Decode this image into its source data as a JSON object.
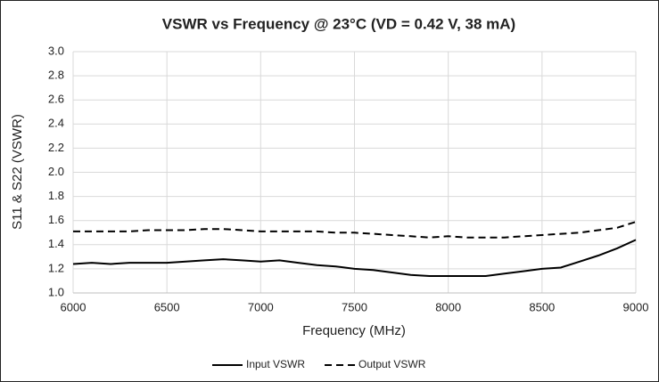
{
  "chart_data": {
    "type": "line",
    "title": "VSWR vs Frequency @ 23°C (VD = 0.42 V, 38 mA)",
    "x_label": "Frequency (MHz)",
    "y_label": "S11 & S22 (VSWR)",
    "x": [
      6000,
      6100,
      6200,
      6300,
      6400,
      6500,
      6600,
      6700,
      6800,
      6900,
      7000,
      7100,
      7200,
      7300,
      7400,
      7500,
      7600,
      7700,
      7800,
      7900,
      8000,
      8100,
      8200,
      8300,
      8400,
      8500,
      8600,
      8700,
      8800,
      8900,
      9000
    ],
    "series": [
      {
        "name": "Input VSWR",
        "color": "#000000",
        "dash": "solid",
        "values": [
          1.24,
          1.25,
          1.24,
          1.25,
          1.25,
          1.25,
          1.26,
          1.27,
          1.28,
          1.27,
          1.26,
          1.27,
          1.25,
          1.23,
          1.22,
          1.2,
          1.19,
          1.17,
          1.15,
          1.14,
          1.14,
          1.14,
          1.14,
          1.16,
          1.18,
          1.2,
          1.21,
          1.26,
          1.31,
          1.37,
          1.44
        ]
      },
      {
        "name": "Output VSWR",
        "color": "#000000",
        "dash": "dashed",
        "values": [
          1.51,
          1.51,
          1.51,
          1.51,
          1.52,
          1.52,
          1.52,
          1.53,
          1.53,
          1.52,
          1.51,
          1.51,
          1.51,
          1.51,
          1.5,
          1.5,
          1.49,
          1.48,
          1.47,
          1.46,
          1.47,
          1.46,
          1.46,
          1.46,
          1.47,
          1.48,
          1.49,
          1.5,
          1.52,
          1.54,
          1.59
        ]
      }
    ],
    "xlim": [
      6000,
      9000
    ],
    "xticks": [
      6000,
      6500,
      7000,
      7500,
      8000,
      8500,
      9000
    ],
    "ylim": [
      1.0,
      3.0
    ],
    "yticks": [
      {
        "value": 1.0,
        "label": "1.0"
      },
      1.2,
      1.4,
      1.6,
      1.8,
      {
        "value": 2.0,
        "label": "2.0"
      },
      2.2,
      2.4,
      2.6,
      2.8,
      {
        "value": 3.0,
        "label": "3.0"
      }
    ],
    "grid": true,
    "legend": "bottom"
  }
}
